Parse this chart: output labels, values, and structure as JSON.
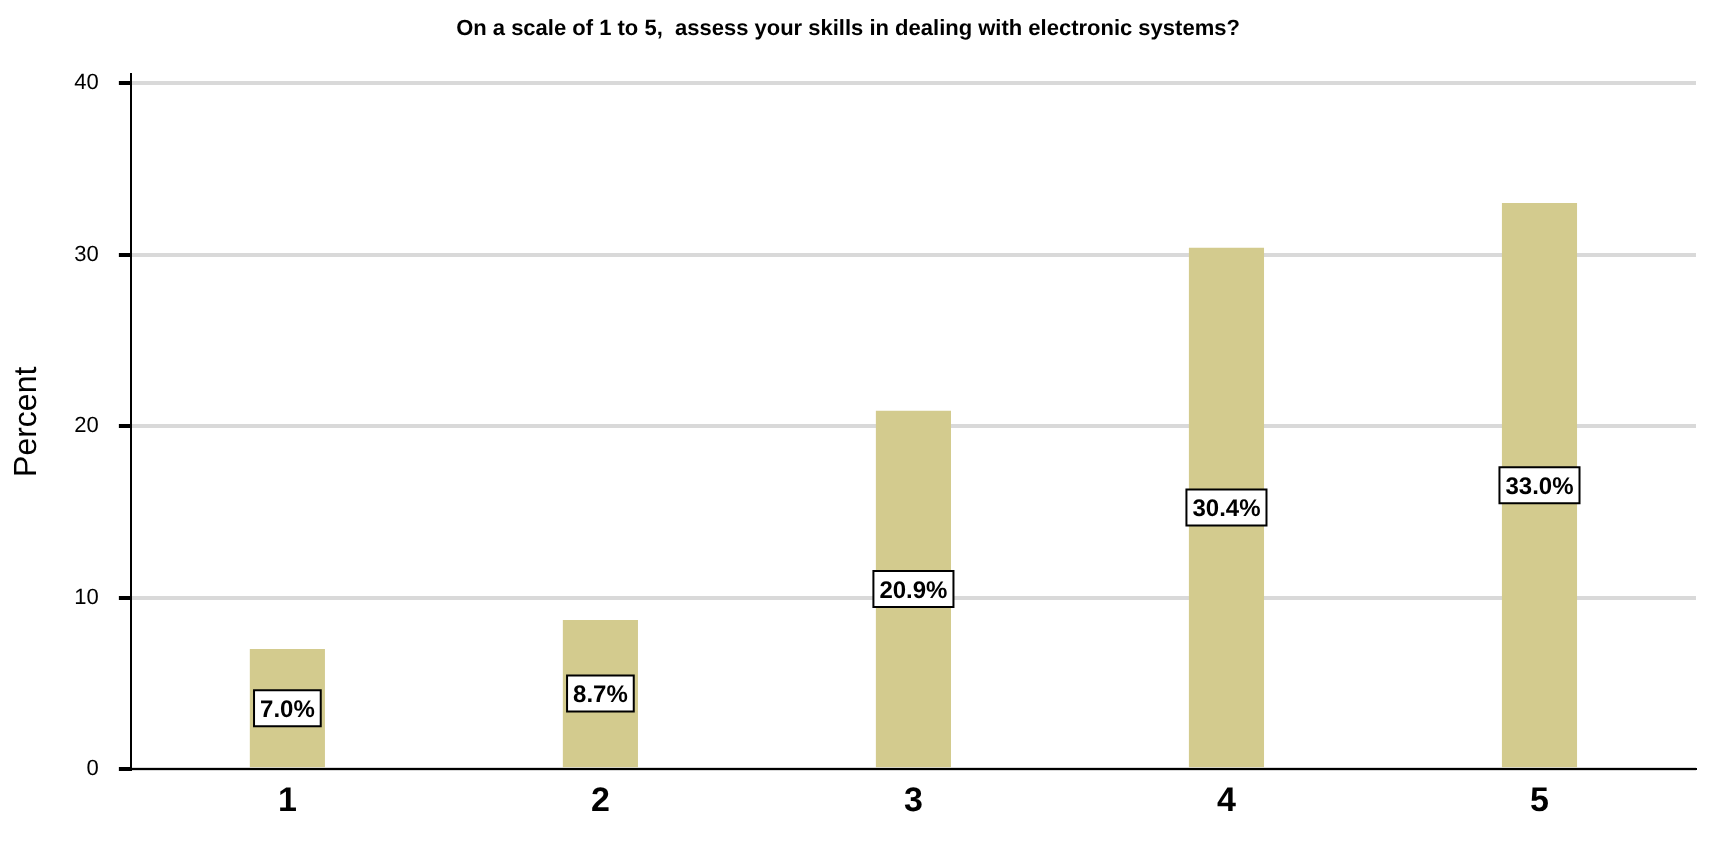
{
  "chart_data": {
    "type": "bar",
    "title": "On a scale of 1 to 5,  assess your skills in dealing with electronic systems?",
    "ylabel": "Percent",
    "categories": [
      "1",
      "2",
      "3",
      "4",
      "5"
    ],
    "values": [
      7.0,
      8.7,
      20.9,
      30.4,
      33.0
    ],
    "value_labels": [
      "7.0%",
      "8.7%",
      "20.9%",
      "30.4%",
      "33.0%"
    ],
    "color": "#d3cb8e",
    "ylim": [
      0,
      40.5
    ],
    "yticks": [
      0,
      10,
      20,
      30,
      40
    ],
    "grid": "y",
    "legend": false
  }
}
